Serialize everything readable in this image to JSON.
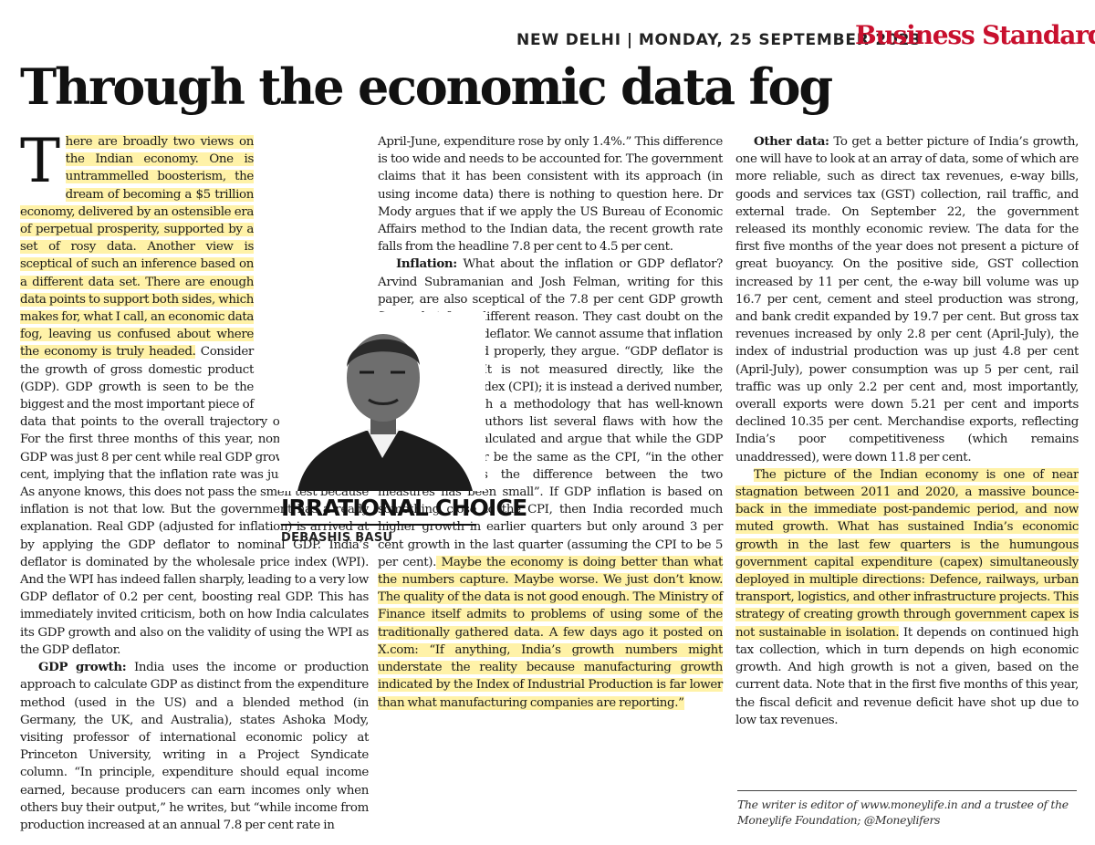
{
  "masthead": {
    "city": "NEW DELHI",
    "separator": "|",
    "date": "MONDAY, 25 SEPTEMBER 2023",
    "brand": "Business Standard"
  },
  "headline": "Through the economic data fog",
  "column": {
    "name": "IRRATIONAL CHOICE",
    "author": "DEBASHIS BASU"
  },
  "article": {
    "dropcap": "T",
    "col1_p1_hl": "here are broadly two views on the Indian economy. One is untrammelled boosterism, the dream of becoming a $5 trillion economy, delivered by an ostensible era of perpetual prosperity, supported by a set of rosy data. Another view is sceptical of such an inference based on a different data set. There are enough data points to support both sides, which makes for, what I call, an economic data fog, leaving us confused about where the economy is truly headed.",
    "col1_p1_rest": " Consider the growth of gross domestic product (GDP). GDP growth is seen to be the biggest and the most important piece of data that points to the overall trajectory of the economy. For the first three months of this year, nominal growth in GDP was just 8 per cent while real GDP growth was 7.8 per cent, implying that the inflation rate was just 0.2 per cent. As anyone knows, this does not pass the smell test because inflation is not that low. But the government has a ready explanation. Real GDP (adjusted for inflation) is arrived at by applying the GDP deflator to nominal GDP. India’s deflator is dominated by the wholesale price index (WPI). And the WPI has indeed fallen sharply, leading to a very low GDP deflator of 0.2 per cent, boosting real GDP. This has immediately invited criticism, both on how India calculates its GDP growth and also on the validity of using the WPI as the GDP deflator.",
    "gdp_sub": "GDP growth:",
    "gdp_text": " India uses the income or production approach to calculate GDP as distinct from the expenditure method (used in the US) and a blended method (in Germany, the UK, and Australia), states Ashoka Mody, visiting professor of international economic policy at Princeton University, writing in a Project Syndicate column. “In principle, expenditure should equal income earned, because producers can earn incomes only when others buy their output,” he writes, but “while income from production increased at an annual 7.8 per cent rate in April-June, expenditure rose by only 1.4%.” This difference is too wide and needs to be accounted for. The government claims that it has been consistent with its approach (in using income data) there is nothing to question here. Dr Mody argues that if we apply the US Bureau of Economic Affairs method to the Indian data, the recent growth rate falls from the headline 7.8 per cent to 4.5 per cent.",
    "inflation_sub": "Inflation:",
    "inflation_text": " What about the inflation or GDP deflator? Arvind Subramanian and Josh Felman, writing for this paper, are also sceptical of the 7.8 per cent GDP growth figure, but for a different reason. They cast doubt on the 0.2 per cent GDP deflator. We cannot assume that inflation is being measured properly, they argue. “GDP deflator is not hard data. It is not measured directly, like the consumer price index (CPI); it is instead a derived number, calculated through a methodology that has well-known problems.” The authors list several flaws with how the GDP deflator is calculated and argue that while the GDP deflator will never be the same as the CPI, “in the other major economies the difference between the two measures has been small”. If GDP inflation is based on something close to the CPI, then India recorded much higher growth in earlier quarters but only around 3 per cent growth in the last quarter (assuming the CPI to be 5 per cent).",
    "inflation_hl": " Maybe the economy is doing better than what the numbers capture. Maybe worse. We just don’t know. The quality of the data is not good enough. The Ministry of Finance itself admits to problems of using some of the traditionally gathered data. A few days ago it posted on X.com: “If anything, India’s growth numbers might understate the reality because manufacturing growth indicated by the Index of Industrial Production is far lower than what manufacturing companies are reporting.”",
    "other_sub": "Other data:",
    "other_text": " To get a better picture of India’s growth, one will have to look at an array of data, some of which are more reliable, such as direct tax revenues, e-way bills, goods and services tax (GST) collection, rail traffic, and external trade. On September 22, the government released its monthly economic review. The data for the first five months of the year does not present a picture of great buoyancy. On the positive side, GST collection increased by 11 per cent, the e-way bill volume was up 16.7 per cent, cement and steel production was strong, and bank credit expanded by 19.7 per cent. But gross tax revenues increased by only 2.8 per cent (April-July), the index of industrial production was up just 4.8 per cent (April-July), power consumption was up 5 per cent, rail traffic was up only 2.2 per cent and, most importantly, overall exports were down 5.21 per cent and imports declined 10.35 per cent. Merchandise exports, reflecting India’s poor competitiveness (which remains unaddressed), were down 11.8 per cent.",
    "final_hl": "The picture of the Indian economy is one of near stagnation between 2011 and 2020, a massive bounce-back in the immediate post-pandemic period, and now muted growth. What has sustained India’s economic growth in the last few quarters is the humungous government capital expenditure (capex) simultaneously deployed in multiple directions: Defence, railways, urban transport, logistics, and other infrastructure projects. This strategy of creating growth through government capex is not sustainable in isolation.",
    "final_rest": " It depends on continued high tax collection, which in turn depends on high economic growth. And high growth is not a given, based on the current data. Note that in the first five months of this year, the fiscal deficit and revenue deficit have shot up due to low tax revenues."
  },
  "footnote": "The writer is editor of www.moneylife.in and a trustee of the Moneylife Foundation; @Moneylifers",
  "colors": {
    "brand": "#c8102e",
    "highlight": "#fff2a8"
  }
}
